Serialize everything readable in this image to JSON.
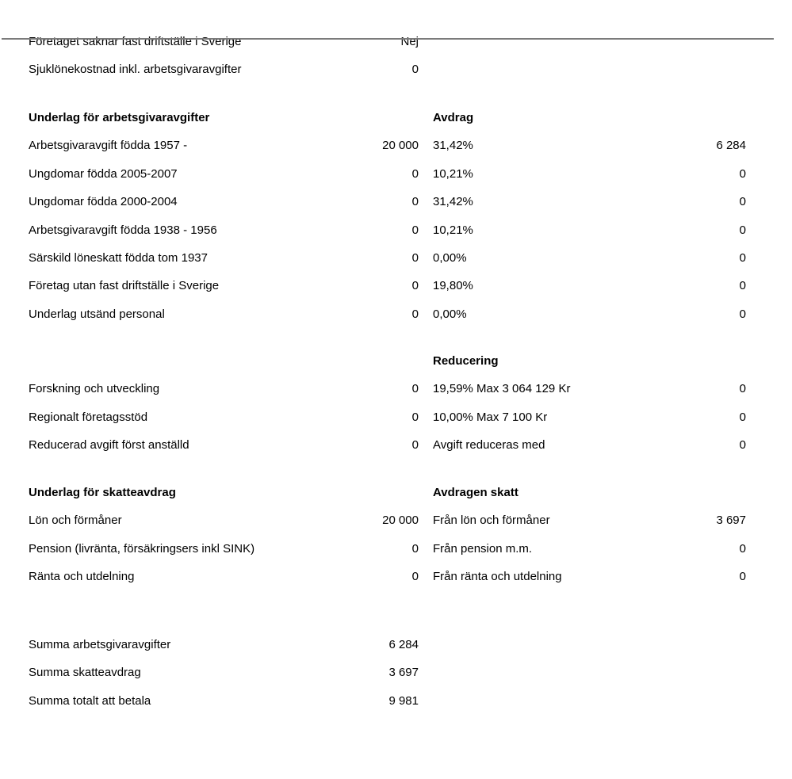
{
  "divider_color": "#7b7b7b",
  "info_rows": [
    {
      "label": "Företaget saknar fast driftställe i Sverige",
      "value": "Nej"
    },
    {
      "label": "Sjuklönekostnad inkl. arbetsgivaravgifter",
      "value": "0"
    }
  ],
  "employer_contributions": {
    "left_header": "Underlag för arbetsgivaravgifter",
    "right_header": "Avdrag",
    "rows": [
      {
        "label": "Arbetsgivaravgift födda 1957 -",
        "base": "20 000",
        "rate": "31,42%",
        "amount": "6 284"
      },
      {
        "label": "Ungdomar födda 2005-2007",
        "base": "0",
        "rate": "10,21%",
        "amount": "0"
      },
      {
        "label": "Ungdomar födda 2000-2004",
        "base": "0",
        "rate": "31,42%",
        "amount": "0"
      },
      {
        "label": "Arbetsgivaravgift födda 1938 - 1956",
        "base": "0",
        "rate": "10,21%",
        "amount": "0"
      },
      {
        "label": "Särskild löneskatt födda tom 1937",
        "base": "0",
        "rate": "0,00%",
        "amount": "0"
      },
      {
        "label": "Företag utan fast driftställe i Sverige",
        "base": "0",
        "rate": "19,80%",
        "amount": "0"
      },
      {
        "label": "Underlag utsänd personal",
        "base": "0",
        "rate": "0,00%",
        "amount": "0"
      }
    ]
  },
  "reduction": {
    "right_header": "Reducering",
    "rows": [
      {
        "label": "Forskning och utveckling",
        "base": "0",
        "rate": "19,59% Max 3 064 129 Kr",
        "amount": "0"
      },
      {
        "label": "Regionalt företagsstöd",
        "base": "0",
        "rate": "10,00% Max 7 100 Kr",
        "amount": "0"
      },
      {
        "label": "Reducerad avgift först anställd",
        "base": "0",
        "rate": "Avgift reduceras med",
        "amount": "0"
      }
    ]
  },
  "tax_deduction": {
    "left_header": "Underlag för skatteavdrag",
    "right_header": "Avdragen skatt",
    "rows": [
      {
        "label": "Lön och förmåner",
        "base": "20 000",
        "rate": "Från lön och förmåner",
        "amount": "3 697"
      },
      {
        "label": "Pension (livränta, försäkringsers inkl SINK)",
        "base": "0",
        "rate": "Från pension m.m.",
        "amount": "0"
      },
      {
        "label": "Ränta och utdelning",
        "base": "0",
        "rate": "Från ränta och utdelning",
        "amount": "0"
      }
    ]
  },
  "summary": {
    "rows": [
      {
        "label": "Summa arbetsgivaravgifter",
        "value": "6 284"
      },
      {
        "label": "Summa skatteavdrag",
        "value": "3 697"
      },
      {
        "label": "Summa totalt att betala",
        "value": "9 981"
      }
    ]
  }
}
